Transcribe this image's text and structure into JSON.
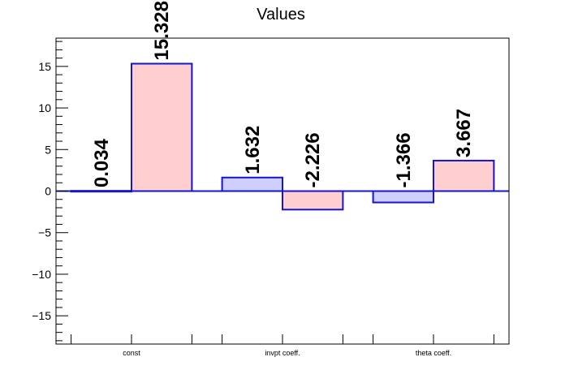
{
  "chart_data": {
    "type": "bar",
    "title": "Values",
    "categories": [
      "const",
      "invpt coeff.",
      "theta coeff."
    ],
    "series": [
      {
        "values": [
          0.034,
          1.632,
          -1.366
        ],
        "fill": "#cfcfff",
        "stroke": "#1414d2"
      },
      {
        "values": [
          15.328,
          -2.226,
          3.667
        ],
        "fill": "#ffcfcf",
        "stroke": "#1414d2"
      }
    ],
    "value_labels": [
      [
        "0.034",
        "1.632",
        "-1.366"
      ],
      [
        "15.328",
        "-2.226",
        "3.667"
      ]
    ],
    "ylim": [
      -18.4,
      18.4
    ],
    "yticks": [
      -15,
      -10,
      -5,
      0,
      5,
      10,
      15
    ],
    "ytick_labels": [
      "−15",
      "−10",
      "−5",
      "0",
      "5",
      "10",
      "15"
    ],
    "grid": false,
    "zero_line_color": "#1414d2",
    "axis_color": "#000000"
  }
}
